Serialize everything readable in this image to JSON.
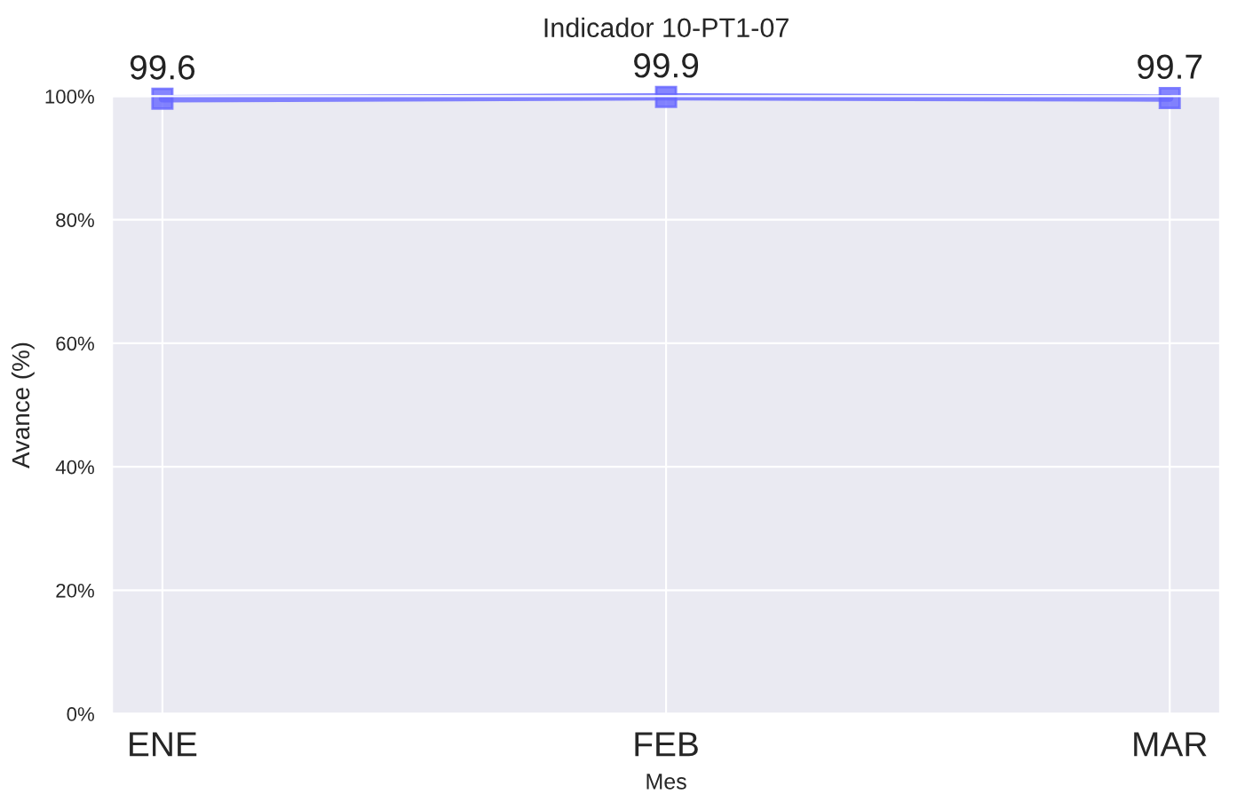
{
  "chart_data": {
    "type": "line",
    "title": "Indicador 10-PT1-07",
    "xlabel": "Mes",
    "ylabel": "Avance (%)",
    "categories": [
      "ENE",
      "FEB",
      "MAR"
    ],
    "series": [
      {
        "color": "#6666ff",
        "values": [
          99.6,
          99.9,
          99.7
        ]
      }
    ],
    "ylim": [
      0,
      100
    ],
    "yticks": [
      {
        "value": 0,
        "label": "0%"
      },
      {
        "value": 20,
        "label": "20%"
      },
      {
        "value": 40,
        "label": "40%"
      },
      {
        "value": 60,
        "label": "60%"
      },
      {
        "value": 80,
        "label": "80%"
      },
      {
        "value": 100,
        "label": "100%"
      }
    ],
    "grid": true,
    "marker": "square",
    "line_style": "solid",
    "data_labels": true
  }
}
